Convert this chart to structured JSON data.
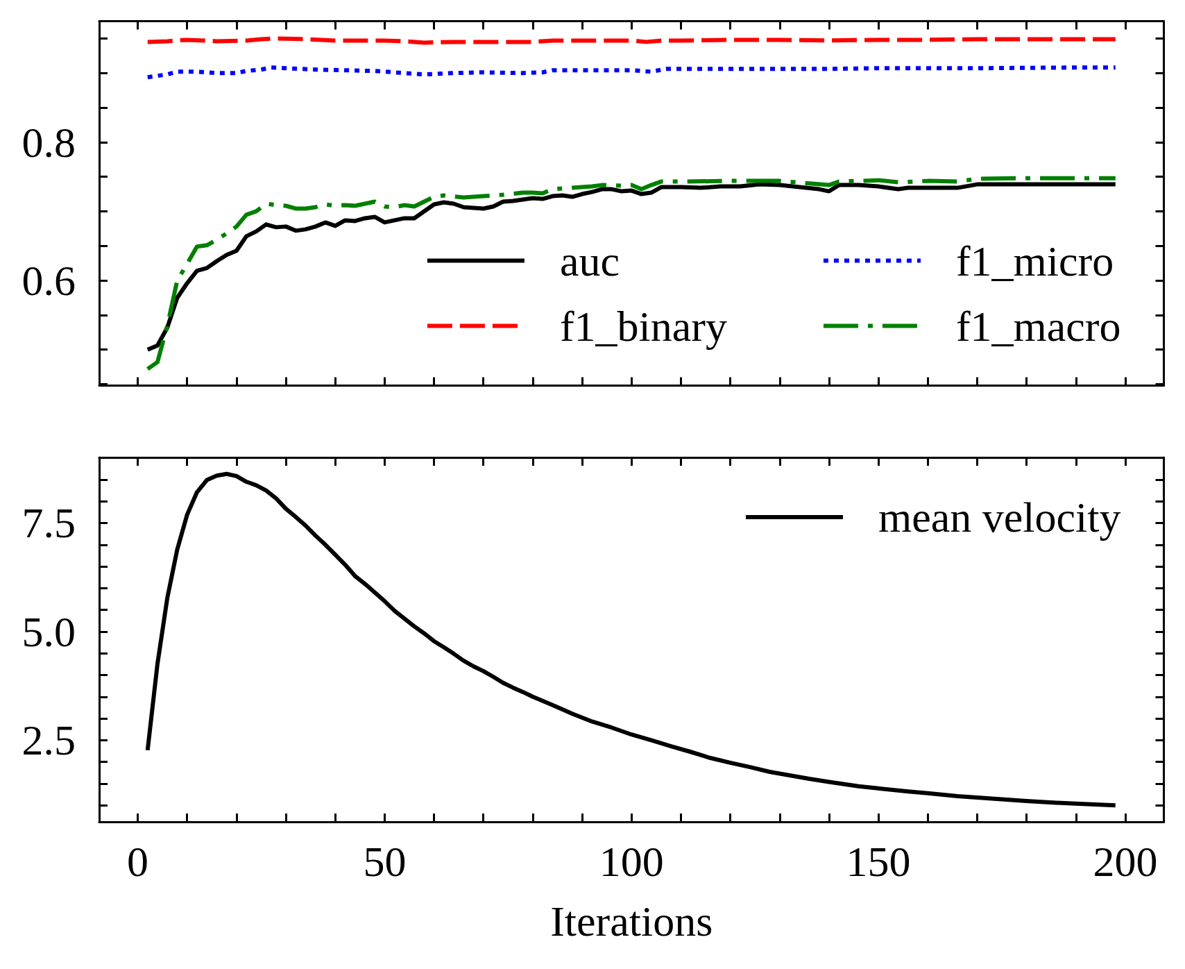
{
  "chart_data": [
    {
      "type": "line",
      "xlim": [
        -7.8,
        207.8
      ],
      "xticks": [
        0,
        {
          "value": 10,
          "label": null
        },
        {
          "value": 20,
          "label": null
        },
        {
          "value": 30,
          "label": null
        },
        {
          "value": 40,
          "label": null
        },
        50,
        {
          "value": 60,
          "label": null
        },
        {
          "value": 70,
          "label": null
        },
        {
          "value": 80,
          "label": null
        },
        {
          "value": 90,
          "label": null
        },
        100,
        {
          "value": 110,
          "label": null
        },
        {
          "value": 120,
          "label": null
        },
        {
          "value": 130,
          "label": null
        },
        {
          "value": 140,
          "label": null
        },
        150,
        {
          "value": 160,
          "label": null
        },
        {
          "value": 170,
          "label": null
        },
        {
          "value": 180,
          "label": null
        },
        {
          "value": 190,
          "label": null
        },
        200
      ],
      "ylim": [
        0.448,
        0.975
      ],
      "yticks": [
        {
          "value": 0.45,
          "label": null
        },
        {
          "value": 0.5,
          "label": null
        },
        {
          "value": 0.55,
          "label": null
        },
        0.6,
        {
          "value": 0.65,
          "label": null
        },
        {
          "value": 0.7,
          "label": null
        },
        {
          "value": 0.75,
          "label": null
        },
        0.8,
        {
          "value": 0.85,
          "label": null
        },
        {
          "value": 0.9,
          "label": null
        },
        {
          "value": 0.95,
          "label": null
        }
      ],
      "tick_labels": "y",
      "legend": "bottom right",
      "series": [
        {
          "name": "auc",
          "color": "#000000",
          "line_style": "solid",
          "x": [
            2,
            4,
            6,
            8,
            10,
            12,
            14,
            16,
            18,
            20,
            22,
            24,
            26,
            28,
            30,
            32,
            34,
            36,
            38,
            40,
            42,
            44,
            46,
            48,
            50,
            52,
            54,
            56,
            58,
            60,
            62,
            64,
            66,
            68,
            70,
            72,
            74,
            76,
            78,
            80,
            82,
            84,
            86,
            88,
            90,
            92,
            94,
            96,
            98,
            100,
            102,
            104,
            106,
            110,
            114,
            118,
            122,
            126,
            130,
            134,
            138,
            140,
            142,
            146,
            150,
            154,
            156,
            160,
            166,
            170,
            180,
            190,
            198
          ],
          "values": [
            0.5,
            0.506,
            0.532,
            0.575,
            0.596,
            0.614,
            0.618,
            0.628,
            0.637,
            0.643,
            0.664,
            0.671,
            0.681,
            0.677,
            0.678,
            0.672,
            0.674,
            0.678,
            0.684,
            0.679,
            0.687,
            0.686,
            0.69,
            0.692,
            0.684,
            0.687,
            0.69,
            0.69,
            0.7,
            0.71,
            0.713,
            0.711,
            0.706,
            0.705,
            0.704,
            0.707,
            0.714,
            0.715,
            0.717,
            0.719,
            0.718,
            0.722,
            0.723,
            0.721,
            0.725,
            0.728,
            0.732,
            0.732,
            0.729,
            0.73,
            0.725,
            0.727,
            0.735,
            0.735,
            0.734,
            0.736,
            0.736,
            0.739,
            0.738,
            0.735,
            0.732,
            0.729,
            0.738,
            0.738,
            0.736,
            0.732,
            0.734,
            0.734,
            0.734,
            0.739,
            0.739,
            0.739,
            0.739
          ]
        },
        {
          "name": "f1_binary",
          "color": "#ff0000",
          "line_style": "dashed",
          "x": [
            2,
            6,
            10,
            16,
            22,
            25,
            28,
            34,
            40,
            46,
            50,
            54,
            58,
            64,
            70,
            76,
            80,
            84,
            90,
            96,
            100,
            103,
            106,
            110,
            120,
            130,
            140,
            150,
            160,
            170,
            180,
            190,
            198
          ],
          "values": [
            0.945,
            0.946,
            0.948,
            0.946,
            0.947,
            0.949,
            0.95,
            0.949,
            0.947,
            0.947,
            0.947,
            0.946,
            0.944,
            0.945,
            0.945,
            0.945,
            0.945,
            0.947,
            0.947,
            0.947,
            0.947,
            0.945,
            0.947,
            0.947,
            0.948,
            0.948,
            0.947,
            0.948,
            0.948,
            0.949,
            0.949,
            0.949,
            0.949
          ]
        },
        {
          "name": "f1_micro",
          "color": "#0000ff",
          "line_style": "dotted",
          "x": [
            2,
            6,
            8,
            12,
            16,
            20,
            22,
            25,
            27,
            30,
            36,
            42,
            48,
            52,
            58,
            64,
            70,
            78,
            82,
            84,
            90,
            96,
            100,
            104,
            107,
            120,
            140,
            150,
            170,
            190,
            198
          ],
          "values": [
            0.894,
            0.898,
            0.902,
            0.902,
            0.9,
            0.9,
            0.903,
            0.905,
            0.908,
            0.907,
            0.905,
            0.904,
            0.903,
            0.901,
            0.898,
            0.9,
            0.901,
            0.9,
            0.901,
            0.904,
            0.904,
            0.904,
            0.904,
            0.902,
            0.906,
            0.906,
            0.906,
            0.907,
            0.907,
            0.908,
            0.908
          ]
        },
        {
          "name": "f1_macro",
          "color": "#008000",
          "line_style": "dashdot",
          "x": [
            2,
            4,
            6,
            8,
            10,
            12,
            14,
            16,
            18,
            20,
            22,
            24,
            26,
            28,
            30,
            32,
            34,
            36,
            38,
            40,
            42,
            44,
            46,
            48,
            50,
            52,
            54,
            56,
            58,
            60,
            62,
            66,
            70,
            74,
            78,
            80,
            82,
            84,
            88,
            92,
            94,
            98,
            100,
            102,
            104,
            106,
            110,
            120,
            130,
            140,
            142,
            150,
            154,
            160,
            166,
            170,
            180,
            198
          ],
          "values": [
            0.472,
            0.482,
            0.535,
            0.6,
            0.624,
            0.649,
            0.651,
            0.659,
            0.668,
            0.678,
            0.695,
            0.7,
            0.711,
            0.709,
            0.708,
            0.704,
            0.704,
            0.706,
            0.71,
            0.708,
            0.709,
            0.708,
            0.711,
            0.714,
            0.707,
            0.706,
            0.709,
            0.707,
            0.714,
            0.721,
            0.723,
            0.72,
            0.722,
            0.724,
            0.727,
            0.727,
            0.726,
            0.732,
            0.734,
            0.736,
            0.738,
            0.737,
            0.738,
            0.732,
            0.738,
            0.743,
            0.743,
            0.744,
            0.744,
            0.738,
            0.743,
            0.745,
            0.742,
            0.744,
            0.743,
            0.747,
            0.748,
            0.748
          ]
        }
      ]
    },
    {
      "type": "line",
      "xlabel": "Iterations",
      "xlim": [
        -7.8,
        207.8
      ],
      "xticks": [
        0,
        {
          "value": 10,
          "label": null
        },
        {
          "value": 20,
          "label": null
        },
        {
          "value": 30,
          "label": null
        },
        {
          "value": 40,
          "label": null
        },
        50,
        {
          "value": 60,
          "label": null
        },
        {
          "value": 70,
          "label": null
        },
        {
          "value": 80,
          "label": null
        },
        {
          "value": 90,
          "label": null
        },
        100,
        {
          "value": 110,
          "label": null
        },
        {
          "value": 120,
          "label": null
        },
        {
          "value": 130,
          "label": null
        },
        {
          "value": 140,
          "label": null
        },
        150,
        {
          "value": 160,
          "label": null
        },
        {
          "value": 170,
          "label": null
        },
        {
          "value": 180,
          "label": null
        },
        {
          "value": 190,
          "label": null
        },
        200
      ],
      "ylim": [
        0.62,
        9.01
      ],
      "yticks": [
        {
          "value": 1.0,
          "label": null
        },
        {
          "value": 1.5,
          "label": null
        },
        {
          "value": 2.0,
          "label": null
        },
        2.5,
        {
          "value": 3.0,
          "label": null
        },
        {
          "value": 3.5,
          "label": null
        },
        {
          "value": 4.0,
          "label": null
        },
        {
          "value": 4.5,
          "label": null
        },
        {
          "value": 5,
          "label": "5.0"
        },
        {
          "value": 5.5,
          "label": null
        },
        {
          "value": 6.0,
          "label": null
        },
        {
          "value": 6.5,
          "label": null
        },
        {
          "value": 7.0,
          "label": null
        },
        7.5,
        {
          "value": 8.0,
          "label": null
        },
        {
          "value": 8.5,
          "label": null
        }
      ],
      "legend": "top right",
      "line_style": "solid",
      "series": [
        {
          "name": "mean velocity",
          "color": "#000000",
          "x": [
            2,
            4,
            6,
            8,
            10,
            12,
            14,
            16,
            18,
            20,
            22,
            24,
            26,
            28,
            30,
            32,
            34,
            36,
            38,
            40,
            42,
            44,
            46,
            48,
            50,
            52,
            54,
            56,
            58,
            60,
            62,
            64,
            66,
            68,
            70,
            72,
            74,
            76,
            78,
            80,
            84,
            88,
            92,
            96,
            100,
            104,
            108,
            112,
            116,
            120,
            124,
            128,
            132,
            136,
            140,
            146,
            150,
            156,
            160,
            166,
            170,
            176,
            180,
            186,
            190,
            198
          ],
          "values": [
            2.27,
            4.26,
            5.78,
            6.89,
            7.69,
            8.21,
            8.49,
            8.59,
            8.63,
            8.58,
            8.45,
            8.37,
            8.25,
            8.07,
            7.83,
            7.64,
            7.44,
            7.21,
            7.0,
            6.77,
            6.54,
            6.28,
            6.1,
            5.9,
            5.7,
            5.48,
            5.3,
            5.12,
            4.96,
            4.78,
            4.64,
            4.49,
            4.33,
            4.2,
            4.09,
            3.96,
            3.82,
            3.71,
            3.61,
            3.5,
            3.31,
            3.11,
            2.93,
            2.79,
            2.63,
            2.5,
            2.36,
            2.23,
            2.09,
            1.98,
            1.88,
            1.77,
            1.69,
            1.61,
            1.54,
            1.44,
            1.39,
            1.32,
            1.28,
            1.21,
            1.18,
            1.13,
            1.1,
            1.06,
            1.04,
            1.0
          ]
        }
      ]
    }
  ]
}
